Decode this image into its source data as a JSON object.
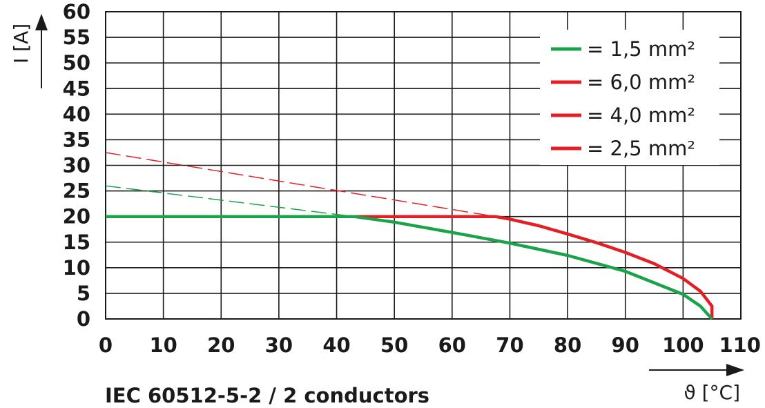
{
  "chart_data": {
    "type": "line",
    "caption": "IEC 60512-5-2 / 2 conductors",
    "xlabel": "ϑ [°C]",
    "ylabel": "I [A]",
    "xlim": [
      0,
      110
    ],
    "ylim": [
      0,
      60
    ],
    "xticks": [
      0,
      10,
      20,
      30,
      40,
      50,
      60,
      70,
      80,
      90,
      100,
      110
    ],
    "yticks": [
      0,
      5,
      10,
      15,
      20,
      25,
      30,
      35,
      40,
      45,
      50,
      55,
      60
    ],
    "grid": true,
    "legend_position": "top-right",
    "series": [
      {
        "name": "= 1,5 mm²",
        "color": "#1aa34a",
        "style": "solid",
        "points": [
          [
            0,
            20
          ],
          [
            43,
            20
          ],
          [
            50,
            18.9
          ],
          [
            60,
            16.9
          ],
          [
            70,
            14.8
          ],
          [
            80,
            12.4
          ],
          [
            90,
            9.3
          ],
          [
            100,
            4.8
          ],
          [
            103,
            2.5
          ],
          [
            105,
            0
          ]
        ]
      },
      {
        "name": "= 6,0 mm²",
        "color": "#e31e24",
        "style": "solid",
        "points": [
          [
            43,
            20
          ],
          [
            67.5,
            20
          ],
          [
            70,
            19.5
          ],
          [
            75,
            18.2
          ],
          [
            80,
            16.6
          ],
          [
            85,
            14.9
          ],
          [
            90,
            13.0
          ],
          [
            95,
            10.8
          ],
          [
            100,
            7.9
          ],
          [
            103,
            5.4
          ],
          [
            105,
            2.5
          ],
          [
            105,
            0
          ]
        ]
      },
      {
        "name": "= 4,0 mm²",
        "color": "#e31e24",
        "style": "solid",
        "points": []
      },
      {
        "name": "= 2,5 mm²",
        "color": "#e31e24",
        "style": "solid",
        "points": []
      },
      {
        "color": "#e31e24",
        "style": "dashed",
        "points": [
          [
            0,
            32.5
          ],
          [
            67.5,
            20
          ]
        ]
      },
      {
        "color": "#1aa34a",
        "style": "dashed",
        "points": [
          [
            0,
            26
          ],
          [
            43,
            20
          ]
        ]
      }
    ]
  }
}
